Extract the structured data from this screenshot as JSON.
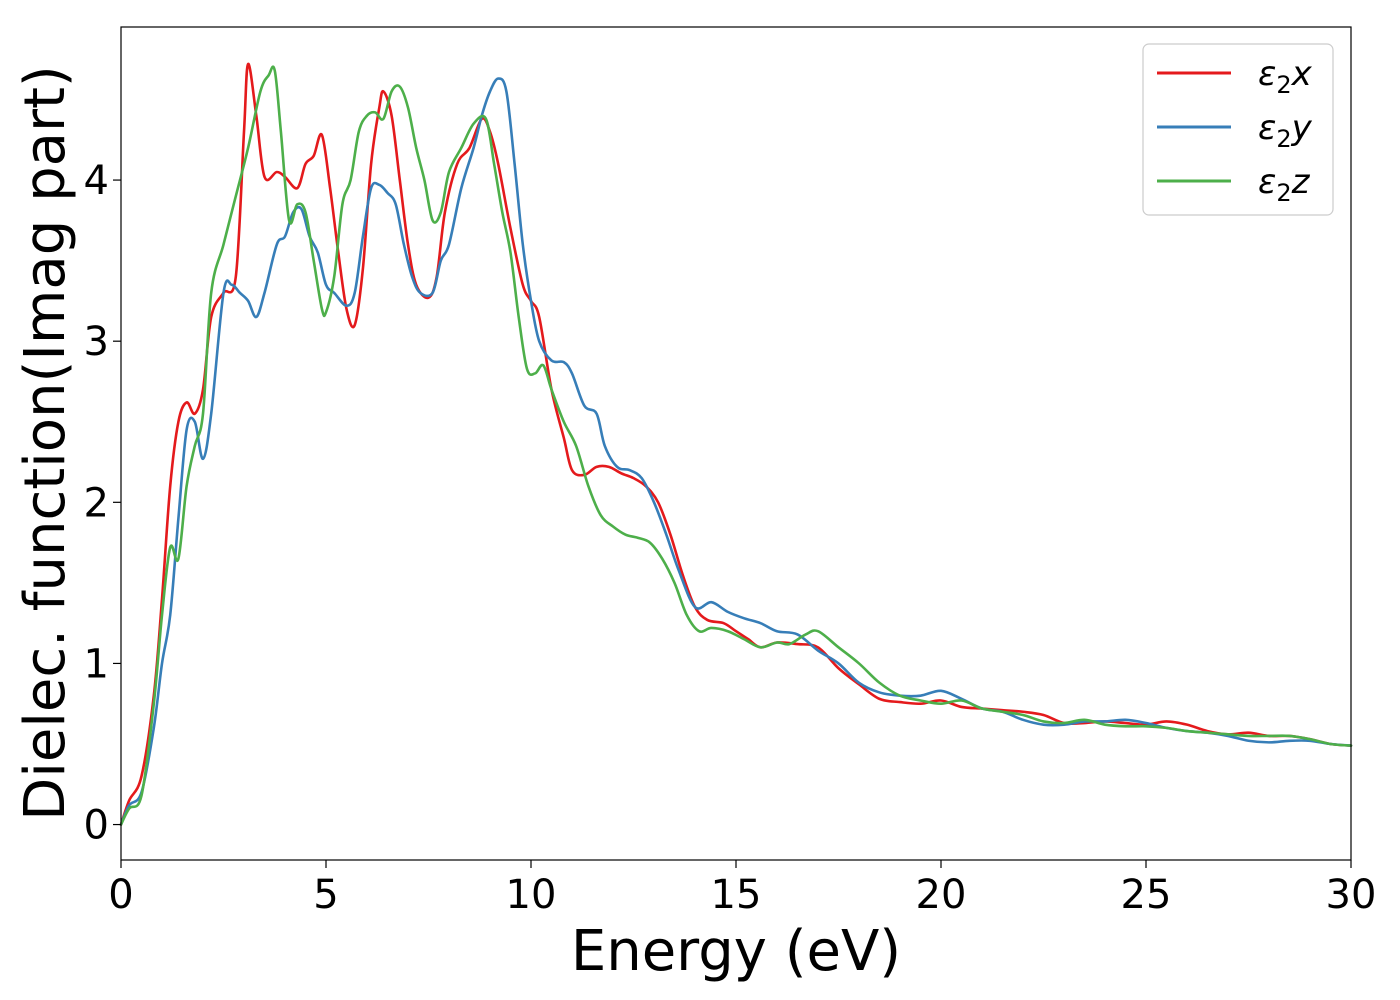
{
  "chart_data": {
    "type": "line",
    "title": "",
    "xlabel": "Energy (eV)",
    "ylabel": "Dielec. function(Imag part)",
    "xlim": [
      0,
      30
    ],
    "ylim": [
      -0.22,
      4.95
    ],
    "xticks": [
      0,
      5,
      10,
      15,
      20,
      25,
      30
    ],
    "xtick_labels": [
      "0",
      "5",
      "10",
      "15",
      "20",
      "25",
      "30"
    ],
    "yticks": [
      0,
      1,
      2,
      3,
      4
    ],
    "ytick_labels": [
      "0",
      "1",
      "2",
      "3",
      "4"
    ],
    "grid": false,
    "legend_position": "top-right",
    "series": [
      {
        "name": "ε2x",
        "legend_base": "ε",
        "legend_sub": "2",
        "legend_var": "x",
        "color": "#e41a1c",
        "x": [
          0,
          0.2,
          0.5,
          0.8,
          1.0,
          1.2,
          1.4,
          1.6,
          1.8,
          2.0,
          2.2,
          2.5,
          2.8,
          3.0,
          3.1,
          3.3,
          3.5,
          3.8,
          4.0,
          4.3,
          4.5,
          4.7,
          4.9,
          5.1,
          5.3,
          5.5,
          5.7,
          5.9,
          6.1,
          6.3,
          6.4,
          6.6,
          6.8,
          7.0,
          7.2,
          7.5,
          7.7,
          7.9,
          8.2,
          8.5,
          8.8,
          9.0,
          9.2,
          9.5,
          9.8,
          10.0,
          10.2,
          10.5,
          10.8,
          11.0,
          11.3,
          11.6,
          11.9,
          12.2,
          12.5,
          12.8,
          13.1,
          13.4,
          13.7,
          14.0,
          14.3,
          14.7,
          15.0,
          15.3,
          15.6,
          16.0,
          16.5,
          17.0,
          17.5,
          18.0,
          18.5,
          19.0,
          19.5,
          20.0,
          20.5,
          21.0,
          21.5,
          22.0,
          22.5,
          23.0,
          23.5,
          24.0,
          24.5,
          25.0,
          25.5,
          26.0,
          26.5,
          27.0,
          27.5,
          28.0,
          28.5,
          29.0,
          29.5,
          30.0
        ],
        "y": [
          0,
          0.15,
          0.3,
          0.8,
          1.4,
          2.1,
          2.5,
          2.62,
          2.55,
          2.7,
          3.15,
          3.3,
          3.4,
          4.3,
          4.72,
          4.4,
          4.02,
          4.05,
          4.02,
          3.95,
          4.1,
          4.15,
          4.28,
          3.95,
          3.55,
          3.2,
          3.1,
          3.45,
          4.1,
          4.45,
          4.55,
          4.4,
          4.0,
          3.6,
          3.35,
          3.27,
          3.4,
          3.8,
          4.1,
          4.2,
          4.38,
          4.3,
          4.1,
          3.7,
          3.35,
          3.25,
          3.15,
          2.7,
          2.4,
          2.2,
          2.17,
          2.22,
          2.22,
          2.18,
          2.15,
          2.1,
          2.0,
          1.8,
          1.55,
          1.35,
          1.27,
          1.25,
          1.2,
          1.15,
          1.1,
          1.13,
          1.12,
          1.1,
          0.97,
          0.87,
          0.78,
          0.76,
          0.75,
          0.77,
          0.73,
          0.72,
          0.71,
          0.7,
          0.68,
          0.63,
          0.63,
          0.64,
          0.63,
          0.62,
          0.64,
          0.62,
          0.58,
          0.56,
          0.57,
          0.55,
          0.55,
          0.53,
          0.5,
          0.49
        ]
      },
      {
        "name": "ε2y",
        "legend_base": "ε",
        "legend_sub": "2",
        "legend_var": "y",
        "color": "#377eb8",
        "x": [
          0,
          0.2,
          0.5,
          0.8,
          1.0,
          1.2,
          1.4,
          1.6,
          1.8,
          2.0,
          2.2,
          2.5,
          2.7,
          2.9,
          3.1,
          3.3,
          3.5,
          3.8,
          4.0,
          4.2,
          4.4,
          4.6,
          4.8,
          5.0,
          5.2,
          5.5,
          5.7,
          5.9,
          6.1,
          6.3,
          6.5,
          6.7,
          6.9,
          7.1,
          7.3,
          7.6,
          7.8,
          8.0,
          8.3,
          8.6,
          8.8,
          9.0,
          9.2,
          9.4,
          9.6,
          9.8,
          10.0,
          10.2,
          10.5,
          10.8,
          11.0,
          11.3,
          11.6,
          11.8,
          12.1,
          12.4,
          12.7,
          13.0,
          13.3,
          13.6,
          14.0,
          14.4,
          14.8,
          15.2,
          15.6,
          16.0,
          16.5,
          17.0,
          17.5,
          18.0,
          18.5,
          19.0,
          19.5,
          20.0,
          20.5,
          21.0,
          21.5,
          22.0,
          22.5,
          23.0,
          23.5,
          24.0,
          24.5,
          25.0,
          25.5,
          26.0,
          26.5,
          27.0,
          27.5,
          28.0,
          28.5,
          29.0,
          29.5,
          30.0
        ],
        "y": [
          0,
          0.12,
          0.2,
          0.6,
          1.0,
          1.3,
          1.9,
          2.45,
          2.5,
          2.27,
          2.55,
          3.3,
          3.35,
          3.3,
          3.25,
          3.15,
          3.3,
          3.6,
          3.65,
          3.8,
          3.82,
          3.65,
          3.55,
          3.35,
          3.3,
          3.22,
          3.3,
          3.65,
          3.95,
          3.97,
          3.92,
          3.85,
          3.6,
          3.4,
          3.3,
          3.3,
          3.5,
          3.6,
          3.95,
          4.2,
          4.4,
          4.55,
          4.63,
          4.55,
          4.1,
          3.6,
          3.25,
          3.0,
          2.88,
          2.87,
          2.8,
          2.6,
          2.55,
          2.35,
          2.22,
          2.2,
          2.15,
          2.0,
          1.8,
          1.58,
          1.35,
          1.38,
          1.32,
          1.28,
          1.25,
          1.2,
          1.18,
          1.08,
          1.0,
          0.88,
          0.82,
          0.8,
          0.8,
          0.83,
          0.78,
          0.72,
          0.7,
          0.65,
          0.62,
          0.62,
          0.64,
          0.64,
          0.65,
          0.63,
          0.6,
          0.58,
          0.57,
          0.55,
          0.52,
          0.51,
          0.52,
          0.52,
          0.5,
          0.49
        ]
      },
      {
        "name": "ε2z",
        "legend_base": "ε",
        "legend_sub": "2",
        "legend_var": "z",
        "color": "#4daf4a",
        "x": [
          0,
          0.2,
          0.5,
          0.8,
          1.0,
          1.2,
          1.4,
          1.6,
          1.8,
          2.0,
          2.2,
          2.5,
          2.8,
          3.1,
          3.4,
          3.6,
          3.75,
          3.9,
          4.1,
          4.3,
          4.5,
          4.7,
          4.9,
          5.0,
          5.2,
          5.4,
          5.6,
          5.8,
          6.0,
          6.2,
          6.4,
          6.6,
          6.8,
          7.0,
          7.2,
          7.4,
          7.6,
          7.8,
          8.0,
          8.3,
          8.6,
          8.9,
          9.1,
          9.3,
          9.5,
          9.7,
          9.9,
          10.1,
          10.3,
          10.5,
          10.8,
          11.1,
          11.4,
          11.7,
          12.0,
          12.3,
          12.6,
          12.9,
          13.2,
          13.5,
          13.8,
          14.1,
          14.4,
          14.8,
          15.2,
          15.6,
          16.0,
          16.3,
          16.7,
          17.0,
          17.5,
          18.0,
          18.5,
          19.0,
          19.5,
          20.0,
          20.5,
          21.0,
          21.5,
          22.0,
          22.5,
          23.0,
          23.5,
          24.0,
          24.5,
          25.0,
          25.5,
          26.0,
          26.5,
          27.0,
          27.5,
          28.0,
          28.5,
          29.0,
          29.5,
          30.0
        ],
        "y": [
          0,
          0.1,
          0.18,
          0.75,
          1.3,
          1.72,
          1.65,
          2.1,
          2.35,
          2.55,
          3.3,
          3.6,
          3.9,
          4.2,
          4.55,
          4.65,
          4.68,
          4.3,
          3.75,
          3.85,
          3.8,
          3.5,
          3.2,
          3.18,
          3.4,
          3.85,
          4.0,
          4.3,
          4.4,
          4.42,
          4.38,
          4.55,
          4.58,
          4.45,
          4.2,
          4.0,
          3.75,
          3.8,
          4.05,
          4.2,
          4.35,
          4.38,
          4.1,
          3.8,
          3.55,
          3.15,
          2.83,
          2.8,
          2.85,
          2.7,
          2.5,
          2.35,
          2.1,
          1.92,
          1.85,
          1.8,
          1.78,
          1.75,
          1.65,
          1.5,
          1.3,
          1.2,
          1.22,
          1.2,
          1.15,
          1.1,
          1.13,
          1.12,
          1.18,
          1.2,
          1.1,
          1.0,
          0.88,
          0.8,
          0.77,
          0.75,
          0.77,
          0.72,
          0.7,
          0.68,
          0.64,
          0.63,
          0.65,
          0.62,
          0.61,
          0.61,
          0.6,
          0.58,
          0.57,
          0.56,
          0.55,
          0.55,
          0.55,
          0.53,
          0.5,
          0.49
        ]
      }
    ]
  }
}
